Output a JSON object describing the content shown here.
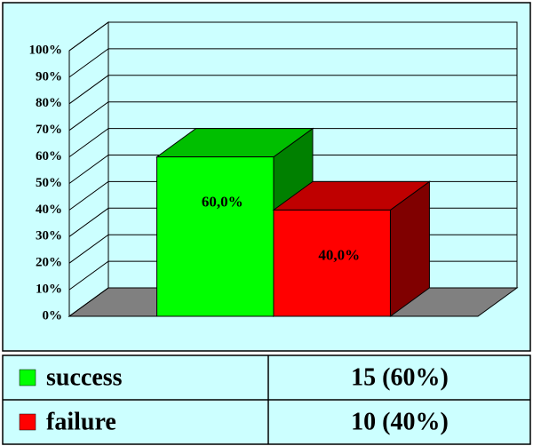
{
  "chart_data": {
    "type": "bar3d",
    "categories": [
      "success",
      "failure"
    ],
    "values": [
      60,
      40
    ],
    "value_labels": [
      "60,0%",
      "40,0%"
    ],
    "colors": [
      "#00ff00",
      "#ff0000"
    ],
    "ylim": [
      0,
      100
    ],
    "yticks": [
      {
        "value": 0,
        "label": "0%"
      },
      {
        "value": 10,
        "label": "10%"
      },
      {
        "value": 20,
        "label": "20%"
      },
      {
        "value": 30,
        "label": "30%"
      },
      {
        "value": 40,
        "label": "40%"
      },
      {
        "value": 50,
        "label": "50%"
      },
      {
        "value": 60,
        "label": "60%"
      },
      {
        "value": 70,
        "label": "70%"
      },
      {
        "value": 80,
        "label": "80%"
      },
      {
        "value": 90,
        "label": "90%"
      },
      {
        "value": 100,
        "label": "100%"
      }
    ],
    "grid": true,
    "data_table": [
      "15 (60%)",
      "10 (40%)"
    ]
  }
}
